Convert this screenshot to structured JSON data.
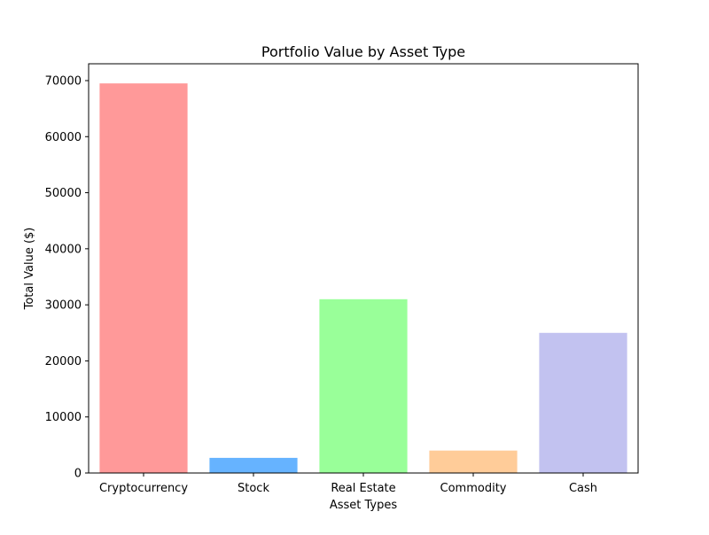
{
  "chart_data": {
    "type": "bar",
    "title": "Portfolio Value by Asset Type",
    "xlabel": "Asset Types",
    "ylabel": "Total Value ($)",
    "categories": [
      "Cryptocurrency",
      "Stock",
      "Real Estate",
      "Commodity",
      "Cash"
    ],
    "values": [
      69500,
      2700,
      31000,
      4000,
      25000
    ],
    "colors": [
      "#ff9999",
      "#66b3ff",
      "#99ff99",
      "#ffcc99",
      "#c2c2f0"
    ],
    "ylim": [
      0,
      73000
    ],
    "yticks": [
      0,
      10000,
      20000,
      30000,
      40000,
      50000,
      60000,
      70000
    ],
    "ytick_labels": [
      "0",
      "10000",
      "20000",
      "30000",
      "40000",
      "50000",
      "60000",
      "70000"
    ],
    "grid": false,
    "legend": "none"
  }
}
